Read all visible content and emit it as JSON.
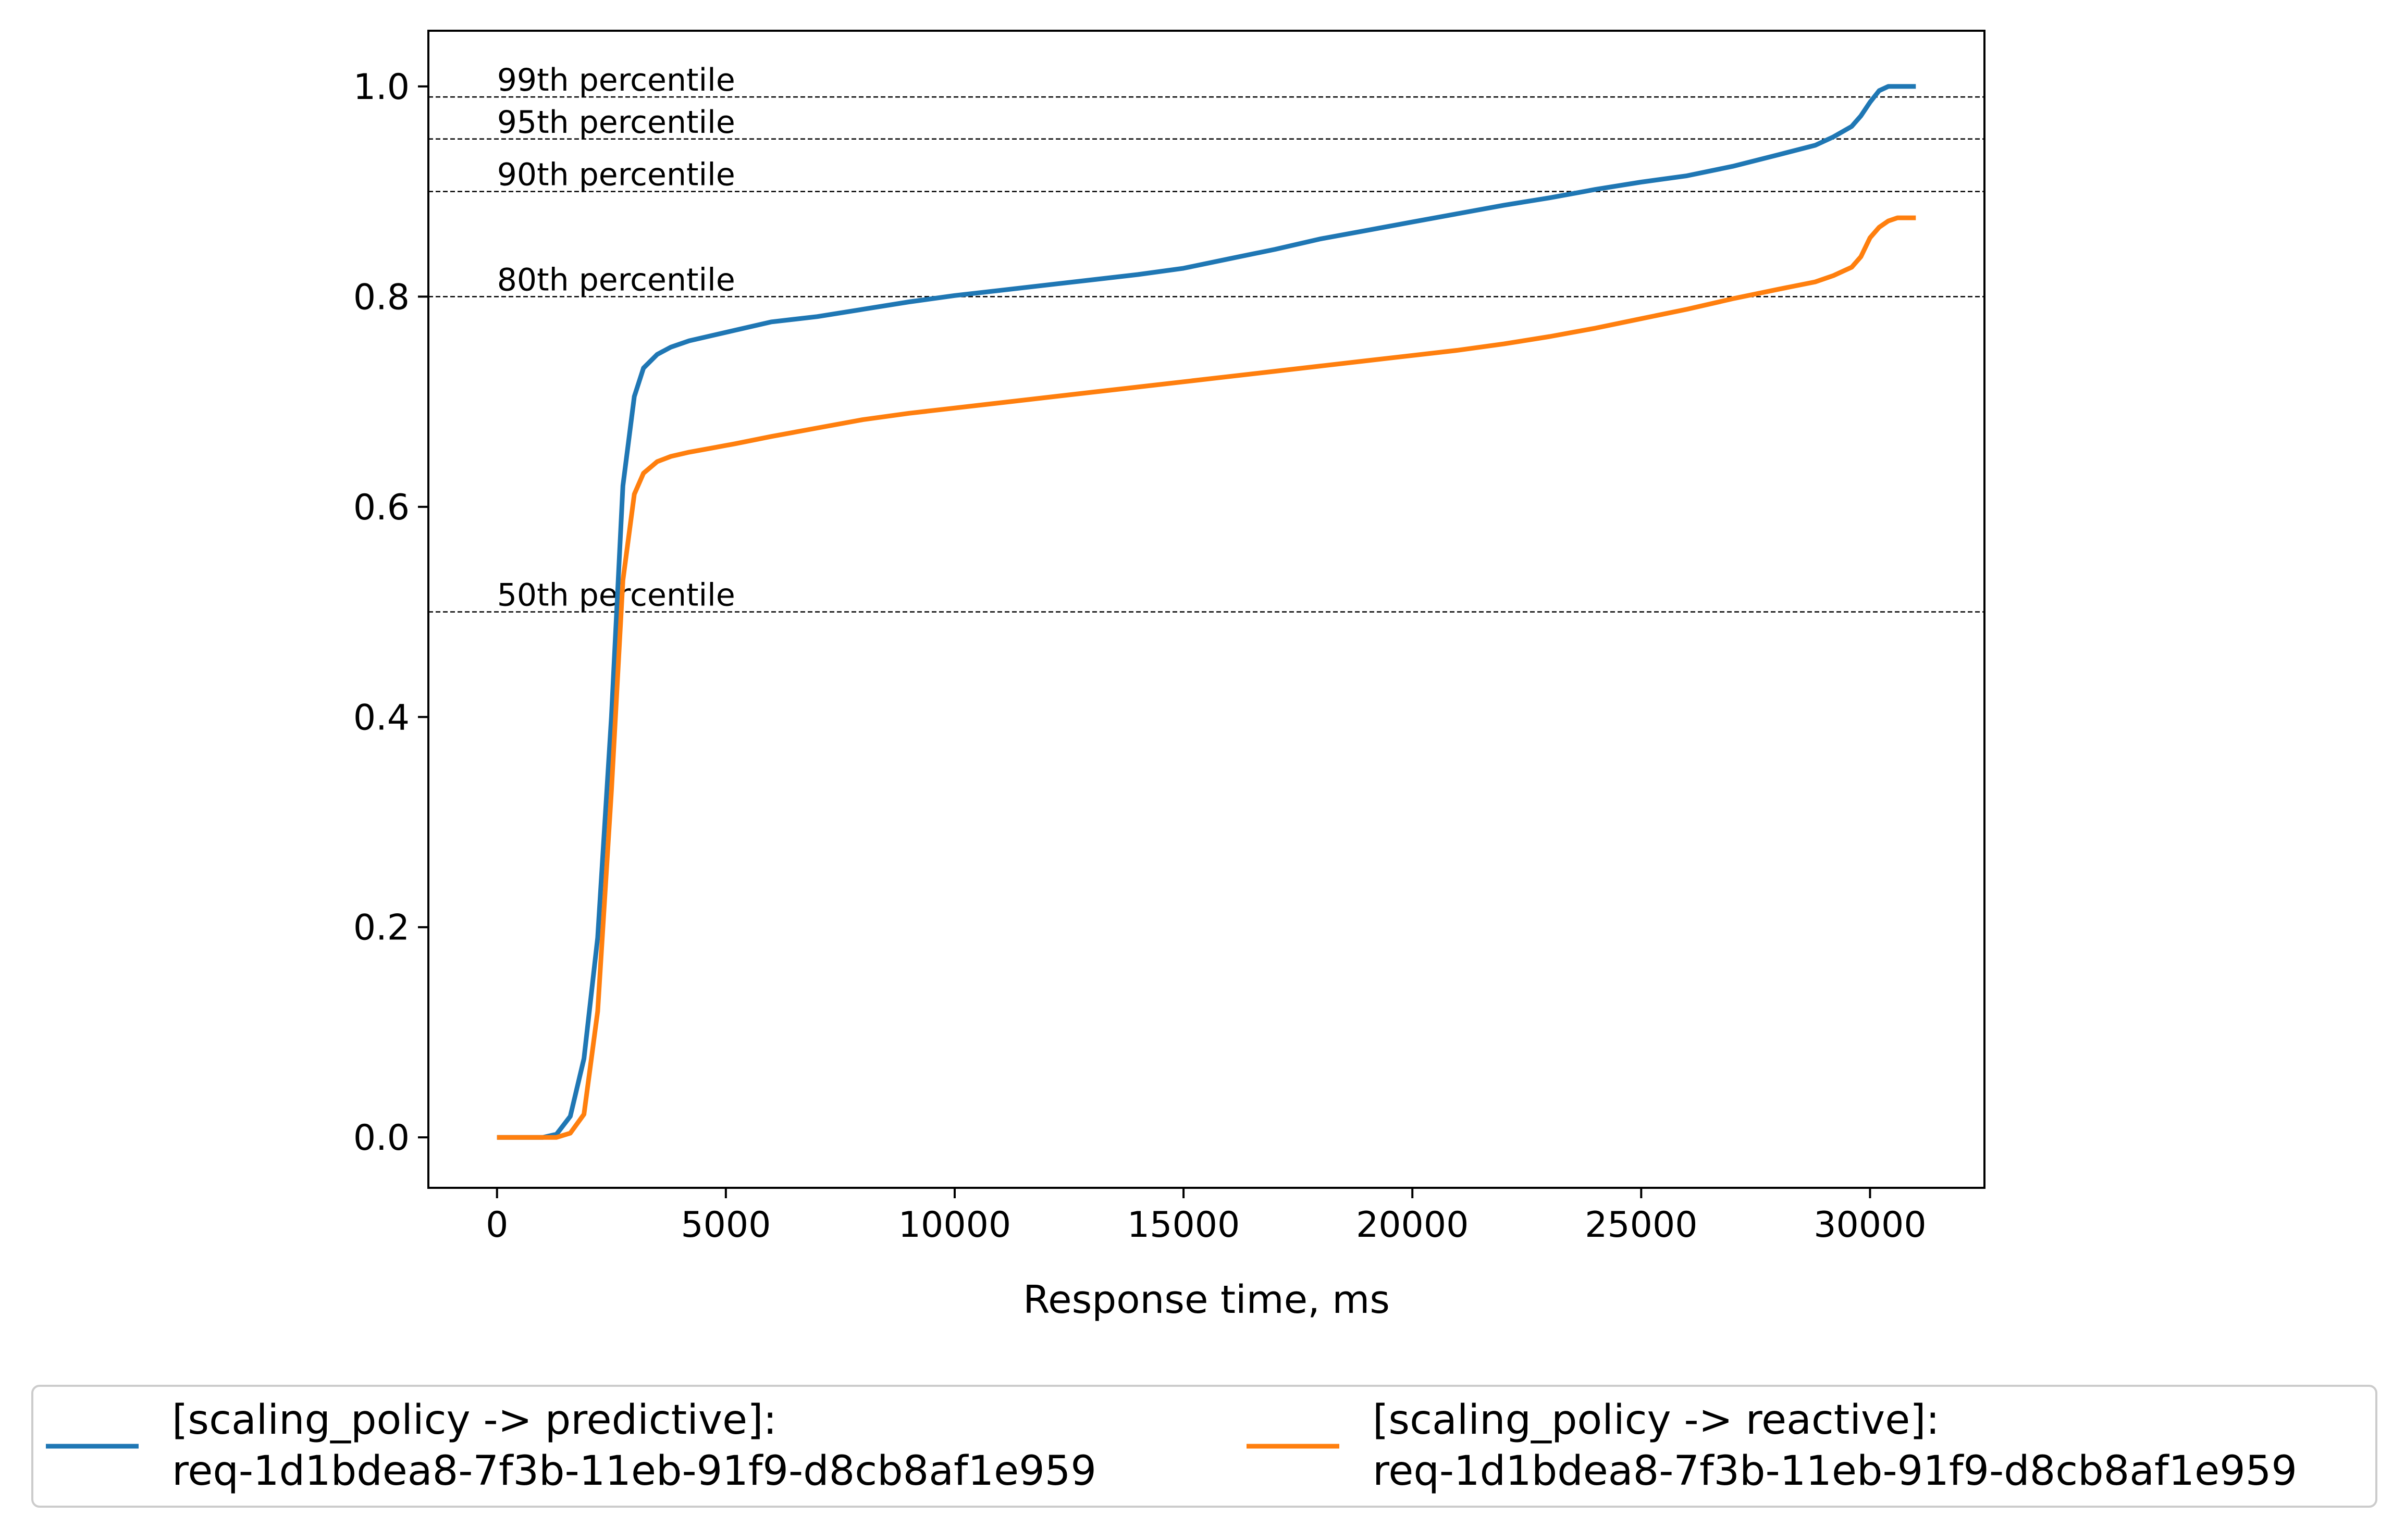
{
  "chart_data": {
    "type": "line",
    "title": "",
    "xlabel": "Response time, ms",
    "ylabel": "",
    "xlim": [
      -1500,
      32500
    ],
    "ylim": [
      -0.048,
      1.053
    ],
    "xticks": [
      0,
      5000,
      10000,
      15000,
      20000,
      25000,
      30000
    ],
    "xtick_labels": [
      "0",
      "5000",
      "10000",
      "15000",
      "20000",
      "25000",
      "30000"
    ],
    "yticks": [
      0.0,
      0.2,
      0.4,
      0.6,
      0.8,
      1.0
    ],
    "ytick_labels": [
      "0.0",
      "0.2",
      "0.4",
      "0.6",
      "0.8",
      "1.0"
    ],
    "grid": false,
    "legend_position": "bottom",
    "reference_lines": [
      {
        "y": 0.99,
        "label": "99th percentile"
      },
      {
        "y": 0.95,
        "label": "95th percentile"
      },
      {
        "y": 0.9,
        "label": "90th percentile"
      },
      {
        "y": 0.8,
        "label": "80th percentile"
      },
      {
        "y": 0.5,
        "label": "50th percentile"
      }
    ],
    "series": [
      {
        "name": "[scaling_policy -> predictive]:",
        "name_line2": "req-1d1bdea8-7f3b-11eb-91f9-d8cb8af1e959",
        "color": "#1f77b4",
        "x": [
          0,
          500,
          1000,
          1300,
          1600,
          1900,
          2200,
          2500,
          2750,
          3000,
          3200,
          3500,
          3800,
          4200,
          4700,
          5200,
          6000,
          7000,
          8000,
          9000,
          10000,
          11000,
          12000,
          13000,
          14000,
          15000,
          16000,
          17000,
          18000,
          19000,
          20000,
          21000,
          22000,
          23000,
          24000,
          25000,
          26000,
          27000,
          28000,
          28800,
          29200,
          29600,
          29800,
          30000,
          30200,
          30400,
          30600,
          31000
        ],
        "y": [
          0.0,
          0.0,
          0.0,
          0.003,
          0.02,
          0.075,
          0.19,
          0.4,
          0.62,
          0.705,
          0.732,
          0.745,
          0.752,
          0.758,
          0.763,
          0.768,
          0.776,
          0.781,
          0.788,
          0.795,
          0.801,
          0.806,
          0.811,
          0.816,
          0.821,
          0.827,
          0.836,
          0.845,
          0.855,
          0.863,
          0.871,
          0.879,
          0.887,
          0.894,
          0.902,
          0.909,
          0.915,
          0.924,
          0.935,
          0.944,
          0.952,
          0.962,
          0.972,
          0.985,
          0.996,
          1.0,
          1.0,
          1.0
        ]
      },
      {
        "name": "[scaling_policy -> reactive]:",
        "name_line2": "req-1d1bdea8-7f3b-11eb-91f9-d8cb8af1e959",
        "color": "#ff7f0e",
        "x": [
          0,
          500,
          1000,
          1300,
          1600,
          1900,
          2200,
          2500,
          2750,
          3000,
          3200,
          3500,
          3800,
          4200,
          4700,
          5200,
          6000,
          7000,
          8000,
          9000,
          10000,
          11000,
          12000,
          13000,
          14000,
          15000,
          16000,
          17000,
          18000,
          19000,
          20000,
          21000,
          22000,
          23000,
          24000,
          25000,
          26000,
          27000,
          28000,
          28800,
          29200,
          29600,
          29800,
          30000,
          30200,
          30400,
          30600,
          31000
        ],
        "y": [
          0.0,
          0.0,
          0.0,
          0.0,
          0.004,
          0.022,
          0.12,
          0.33,
          0.53,
          0.612,
          0.632,
          0.643,
          0.648,
          0.652,
          0.656,
          0.66,
          0.667,
          0.675,
          0.683,
          0.689,
          0.694,
          0.699,
          0.704,
          0.709,
          0.714,
          0.719,
          0.724,
          0.729,
          0.734,
          0.739,
          0.744,
          0.749,
          0.755,
          0.762,
          0.77,
          0.779,
          0.788,
          0.798,
          0.807,
          0.814,
          0.82,
          0.828,
          0.838,
          0.856,
          0.866,
          0.872,
          0.875,
          0.875
        ]
      }
    ]
  }
}
